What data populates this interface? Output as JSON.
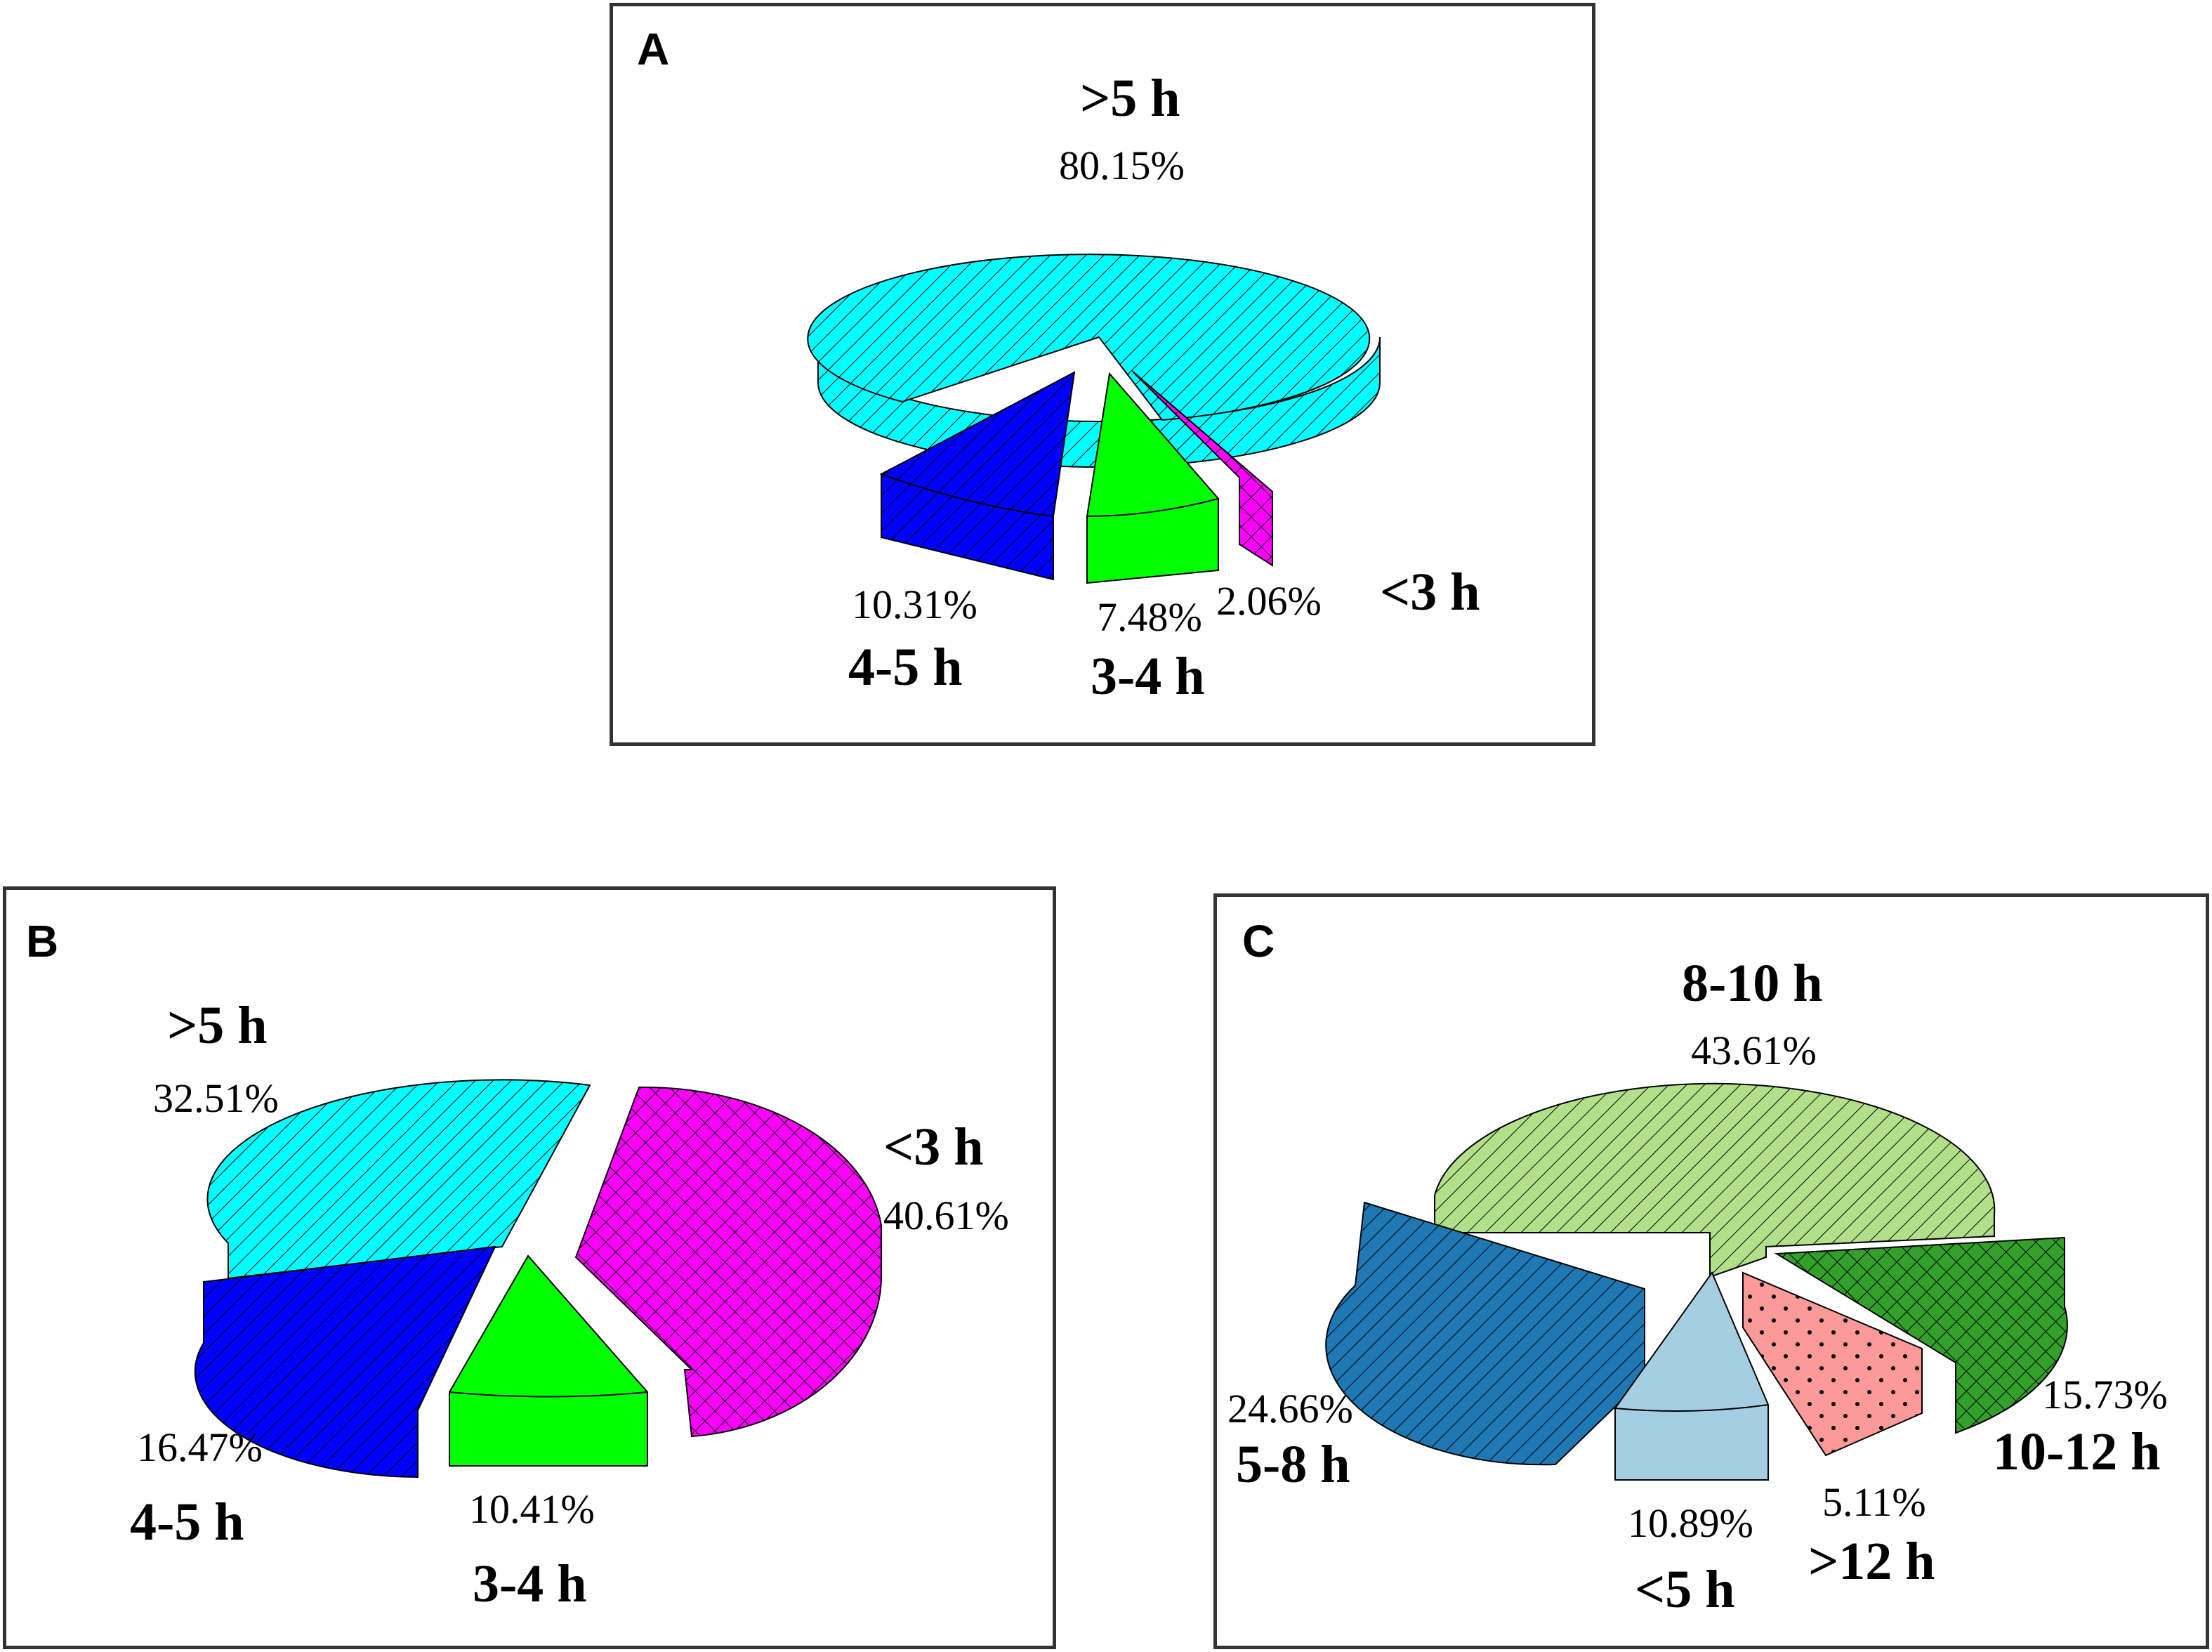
{
  "chart_data": [
    {
      "type": "pie",
      "panel": "A",
      "slices": [
        {
          "category": ">5 h",
          "percent": "80.15%",
          "value": 80.15,
          "color": "#00FFFF",
          "pattern": "diagonal"
        },
        {
          "category": "4-5 h",
          "percent": "10.31%",
          "value": 10.31,
          "color": "#0000FF",
          "pattern": "diagonal"
        },
        {
          "category": "3-4 h",
          "percent": "7.48%",
          "value": 7.48,
          "color": "#00FF00",
          "pattern": "none"
        },
        {
          "category": "<3 h",
          "percent": "2.06%",
          "value": 2.06,
          "color": "#FF00FF",
          "pattern": "crosshatch"
        }
      ]
    },
    {
      "type": "pie",
      "panel": "B",
      "slices": [
        {
          "category": ">5 h",
          "percent": "32.51%",
          "value": 32.51,
          "color": "#00FFFF",
          "pattern": "diagonal"
        },
        {
          "category": "<3 h",
          "percent": "40.61%",
          "value": 40.61,
          "color": "#FF00FF",
          "pattern": "crosshatch"
        },
        {
          "category": "4-5 h",
          "percent": "16.47%",
          "value": 16.47,
          "color": "#0000FF",
          "pattern": "diagonal"
        },
        {
          "category": "3-4 h",
          "percent": "10.41%",
          "value": 10.41,
          "color": "#00FF00",
          "pattern": "none"
        }
      ]
    },
    {
      "type": "pie",
      "panel": "C",
      "slices": [
        {
          "category": "8-10 h",
          "percent": "43.61%",
          "value": 43.61,
          "color": "#B2DF8A",
          "pattern": "diagonal"
        },
        {
          "category": "5-8 h",
          "percent": "24.66%",
          "value": 24.66,
          "color": "#1F78B4",
          "pattern": "diagonal"
        },
        {
          "category": "<5 h",
          "percent": "10.89%",
          "value": 10.89,
          "color": "#A6CEE3",
          "pattern": "none"
        },
        {
          "category": ">12 h",
          "percent": "5.11%",
          "value": 5.11,
          "color": "#FB9A99",
          "pattern": "dots"
        },
        {
          "category": "10-12 h",
          "percent": "15.73%",
          "value": 15.73,
          "color": "#33A02C",
          "pattern": "crosshatch"
        }
      ]
    }
  ]
}
